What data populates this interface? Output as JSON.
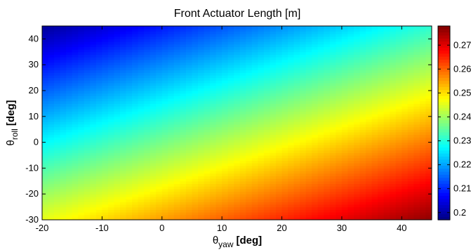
{
  "chart_data": {
    "type": "heatmap",
    "title": "Front Actuator Length [m]",
    "xlabel": {
      "symbol": "θ",
      "subscript": "yaw",
      "unit": "[deg]"
    },
    "ylabel": {
      "symbol": "θ",
      "subscript": "roll",
      "unit": "[deg]"
    },
    "xlim": [
      -20,
      45
    ],
    "ylim": [
      -30,
      45
    ],
    "xticks": [
      "-20",
      "-10",
      "0",
      "10",
      "20",
      "30",
      "40"
    ],
    "yticks": [
      "-30",
      "-20",
      "-10",
      "0",
      "10",
      "20",
      "30",
      "40"
    ],
    "colormap": "jet",
    "clim": [
      0.197,
      0.278
    ],
    "colorbar_ticks": [
      "0.2",
      "0.21",
      "0.22",
      "0.23",
      "0.24",
      "0.25",
      "0.26",
      "0.27"
    ],
    "surface_samples": {
      "x": [
        -20,
        45
      ],
      "y": [
        -30,
        45
      ],
      "z": [
        [
          0.246,
          0.277
        ],
        [
          0.199,
          0.231
        ]
      ]
    }
  }
}
